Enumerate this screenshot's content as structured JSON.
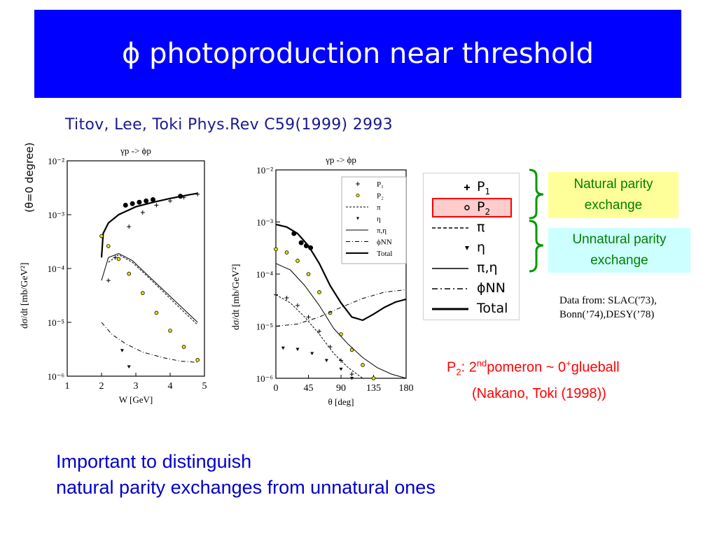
{
  "slide": {
    "title": "ϕ photoproduction near threshold",
    "citation": "Titov, Lee, Toki Phys.Rev C59(1999) 2993",
    "side_label": "(θ=0 degree)",
    "data_source_line1": "Data from: SLAC('73),",
    "data_source_line2": "Bonn(’74),DESY(’78)",
    "natural_line1": "Natural parity",
    "natural_line2": "exchange",
    "unnatural_line1": "Unnatural parity",
    "unnatural_line2": "exchange",
    "p2_note": {
      "p": "P",
      "sub": "2",
      "colon_two": ": 2",
      "nd": "nd",
      "pomeron": "pomeron ~ 0",
      "plus": "+",
      "glueball": "glueball"
    },
    "p2_source": "(Nakano, Toki (1998))",
    "conclusion_line1": "Important to distinguish",
    "conclusion_line2": "natural parity exchanges from unnatural ones",
    "colors": {
      "title_bg": "#0000ff",
      "title_text": "#ffffff",
      "bracket": "#009900",
      "highlight": "#ff0000",
      "highlight_bg": "#ffcccc",
      "conclusion": "#0000cc"
    }
  },
  "legend_big": {
    "items": [
      {
        "symbol": "cross",
        "label": "P",
        "sub": "1"
      },
      {
        "symbol": "circle",
        "label": "P",
        "sub": "2",
        "highlight": true
      },
      {
        "symbol": "dashed",
        "label": "π"
      },
      {
        "symbol": "triangle",
        "label": "η"
      },
      {
        "symbol": "solid-thin",
        "label": "π,η"
      },
      {
        "symbol": "dashdot",
        "label": "ϕNN"
      },
      {
        "symbol": "solid-thick",
        "label": "Total"
      }
    ]
  },
  "chart_data": [
    {
      "type": "line",
      "title": "γp -> ϕp",
      "xlabel": "W [GeV]",
      "ylabel": "dσ/dt [mb/GeV²]",
      "xlim": [
        1,
        5
      ],
      "ylim": [
        1e-06,
        0.01
      ],
      "yscale": "log",
      "x_ticks": [
        "1",
        "2",
        "3",
        "4",
        "5"
      ],
      "y_ticks": [
        "10⁻²",
        "10⁻³",
        "10⁻⁴",
        "10⁻⁵",
        "10⁻⁶"
      ],
      "series": [
        {
          "name": "Total",
          "style": "solid-thick",
          "points": [
            [
              2.0,
              0.00016
            ],
            [
              2.05,
              0.00045
            ],
            [
              2.2,
              0.0007
            ],
            [
              2.5,
              0.001
            ],
            [
              3.0,
              0.0014
            ],
            [
              3.5,
              0.0017
            ],
            [
              4.0,
              0.002
            ],
            [
              4.5,
              0.0023
            ],
            [
              4.8,
              0.0025
            ]
          ]
        },
        {
          "name": "P₂",
          "style": "circle",
          "points": [
            [
              2.0,
              0.0004
            ],
            [
              2.2,
              0.00026
            ],
            [
              2.5,
              0.00015
            ],
            [
              2.8,
              8e-05
            ],
            [
              3.2,
              3.5e-05
            ],
            [
              3.6,
              1.5e-05
            ],
            [
              4.0,
              7e-06
            ],
            [
              4.4,
              3.5e-06
            ],
            [
              4.8,
              2e-06
            ]
          ]
        },
        {
          "name": "P₁",
          "style": "cross",
          "points": [
            [
              2.2,
              6e-05
            ],
            [
              2.4,
              0.00016
            ],
            [
              2.8,
              0.0006
            ],
            [
              3.2,
              0.0011
            ],
            [
              3.6,
              0.0015
            ],
            [
              4.0,
              0.0018
            ],
            [
              4.4,
              0.0021
            ],
            [
              4.8,
              0.0024
            ]
          ]
        },
        {
          "name": "π,η",
          "style": "solid-thin",
          "points": [
            [
              2.0,
              6e-05
            ],
            [
              2.2,
              0.00016
            ],
            [
              2.5,
              0.00019
            ],
            [
              2.9,
              0.00014
            ],
            [
              3.3,
              8e-05
            ],
            [
              3.8,
              4e-05
            ],
            [
              4.3,
              2e-05
            ],
            [
              4.8,
              1e-05
            ]
          ]
        },
        {
          "name": "π",
          "style": "dashed",
          "points": [
            [
              2.2,
              0.00013
            ],
            [
              2.5,
              0.00018
            ],
            [
              2.9,
              0.00013
            ],
            [
              3.3,
              7.5e-05
            ],
            [
              3.8,
              3.7e-05
            ],
            [
              4.3,
              1.8e-05
            ],
            [
              4.8,
              9e-06
            ]
          ]
        },
        {
          "name": "η",
          "style": "triangle",
          "points": [
            [
              2.6,
              3e-06
            ],
            [
              2.8,
              1.5e-06
            ],
            [
              3.0,
              8e-07
            ]
          ]
        },
        {
          "name": "ϕNN",
          "style": "dashdot",
          "points": [
            [
              2.0,
              1e-05
            ],
            [
              2.3,
              6e-06
            ],
            [
              2.7,
              4e-06
            ],
            [
              3.2,
              2.8e-06
            ],
            [
              3.8,
              2.2e-06
            ],
            [
              4.3,
              1.9e-06
            ],
            [
              4.8,
              1.8e-06
            ]
          ]
        },
        {
          "name": "data",
          "style": "dot",
          "points": [
            [
              2.7,
              0.0015
            ],
            [
              2.9,
              0.0016
            ],
            [
              3.1,
              0.0017
            ],
            [
              3.3,
              0.0018
            ],
            [
              3.5,
              0.0019
            ],
            [
              4.3,
              0.0022
            ]
          ]
        }
      ]
    },
    {
      "type": "line",
      "title": "γp -> ϕp",
      "xlabel": "θ [deg]",
      "ylabel": "dσ/dt [mb/GeV²]",
      "xlim": [
        0,
        180
      ],
      "ylim": [
        1e-06,
        0.01
      ],
      "yscale": "log",
      "x_ticks": [
        "0",
        "45",
        "90",
        "135",
        "180"
      ],
      "y_ticks": [
        "10⁻²",
        "10⁻³",
        "10⁻⁴",
        "10⁻⁵",
        "10⁻⁶"
      ],
      "legend": [
        "P₁",
        "P₂",
        "π",
        "η",
        "π,η",
        "ϕNN",
        "Total"
      ],
      "series": [
        {
          "name": "Total",
          "style": "solid-thick",
          "points": [
            [
              0,
              0.0009
            ],
            [
              15,
              0.0008
            ],
            [
              30,
              0.0006
            ],
            [
              45,
              0.00035
            ],
            [
              60,
              0.00016
            ],
            [
              75,
              6e-05
            ],
            [
              90,
              2.8e-05
            ],
            [
              105,
              1.5e-05
            ],
            [
              120,
              1.3e-05
            ],
            [
              135,
              1.7e-05
            ],
            [
              150,
              2.3e-05
            ],
            [
              165,
              2.9e-05
            ],
            [
              180,
              3.3e-05
            ]
          ]
        },
        {
          "name": "P₂",
          "style": "circle",
          "points": [
            [
              0,
              0.0003
            ],
            [
              15,
              0.00026
            ],
            [
              30,
              0.00018
            ],
            [
              45,
              0.0001
            ],
            [
              60,
              4.5e-05
            ],
            [
              75,
              1.8e-05
            ],
            [
              90,
              7e-06
            ],
            [
              105,
              3.5e-06
            ],
            [
              120,
              1.8e-06
            ],
            [
              135,
              1e-06
            ]
          ]
        },
        {
          "name": "P₁",
          "style": "cross",
          "points": [
            [
              0,
              4e-05
            ],
            [
              15,
              3.5e-05
            ],
            [
              30,
              2.5e-05
            ],
            [
              45,
              1.5e-05
            ],
            [
              60,
              8e-06
            ],
            [
              75,
              4e-06
            ],
            [
              90,
              2.2e-06
            ],
            [
              105,
              1.2e-06
            ]
          ]
        },
        {
          "name": "π,η",
          "style": "solid-thin",
          "points": [
            [
              0,
              0.00016
            ],
            [
              20,
              0.00012
            ],
            [
              40,
              6e-05
            ],
            [
              60,
              2.5e-05
            ],
            [
              80,
              9e-06
            ],
            [
              100,
              4.5e-06
            ],
            [
              120,
              2.5e-06
            ],
            [
              140,
              1.6e-06
            ],
            [
              160,
              1.2e-06
            ],
            [
              180,
              1e-06
            ]
          ]
        },
        {
          "name": "π",
          "style": "dashed",
          "points": [
            [
              0,
              4e-05
            ],
            [
              20,
              2.8e-05
            ],
            [
              40,
              1.5e-05
            ],
            [
              60,
              7e-06
            ],
            [
              80,
              3e-06
            ],
            [
              100,
              1.6e-06
            ],
            [
              120,
              1e-06
            ]
          ]
        },
        {
          "name": "η",
          "style": "triangle",
          "points": [
            [
              10,
              3.8e-06
            ],
            [
              30,
              3.6e-06
            ],
            [
              50,
              3e-06
            ],
            [
              70,
              2.2e-06
            ],
            [
              90,
              1.5e-06
            ],
            [
              105,
              1e-06
            ]
          ]
        },
        {
          "name": "ϕNN",
          "style": "dashdot",
          "points": [
            [
              0,
              1e-05
            ],
            [
              30,
              1.1e-05
            ],
            [
              60,
              1.5e-05
            ],
            [
              90,
              2.3e-05
            ],
            [
              120,
              3.4e-05
            ],
            [
              150,
              4.5e-05
            ],
            [
              180,
              5e-05
            ]
          ]
        },
        {
          "name": "data",
          "style": "dot",
          "points": [
            [
              25,
              0.0006
            ],
            [
              35,
              0.0004
            ],
            [
              42,
              0.00035
            ],
            [
              48,
              0.00032
            ]
          ]
        }
      ]
    }
  ]
}
